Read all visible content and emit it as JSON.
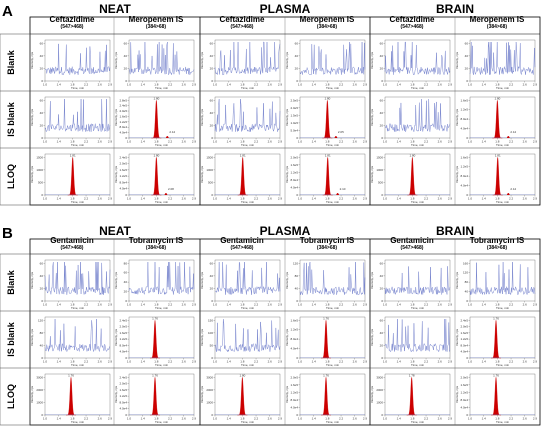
{
  "figure": {
    "panels": [
      {
        "label": "A",
        "conditions": [
          "NEAT",
          "PLASMA",
          "BRAIN"
        ],
        "analytes": [
          {
            "name": "Ceftazidime",
            "transition": "(547>468)"
          },
          {
            "name": "Meropenem IS",
            "transition": "(384>68)"
          }
        ],
        "rows": [
          "Blank",
          "IS blank",
          "LLOQ"
        ]
      },
      {
        "label": "B",
        "conditions": [
          "NEAT",
          "PLASMA",
          "BRAIN"
        ],
        "analytes": [
          {
            "name": "Gentamicin",
            "transition": "(547>468)"
          },
          {
            "name": "Tobramycin IS",
            "transition": "(384>68)"
          }
        ],
        "rows": [
          "Blank",
          "IS blank",
          "LLOQ"
        ]
      }
    ],
    "axis_label_y": "Intensity, cps",
    "axis_label_x": "Time, min",
    "colors": {
      "trace": "#6a78c8",
      "peak": "#cc0000",
      "border": "#000000"
    }
  },
  "chart_data": [
    {
      "type": "line",
      "panel": "A",
      "xlabel": "Time, min",
      "ylabel": "Intensity, cps",
      "x_ticks": [
        "1.0",
        "1.4",
        "1.8",
        "2.2",
        "2.6",
        "2.9"
      ],
      "xlim": [
        1.0,
        2.9
      ],
      "peak_retention_time": "1.80",
      "cells": [
        {
          "condition": "NEAT",
          "analyte": "Ceftazidime",
          "row": "Blank",
          "y_ticks": [
            "0",
            "20",
            "40",
            "60"
          ],
          "peak": false,
          "peak_labels": []
        },
        {
          "condition": "NEAT",
          "analyte": "Meropenem IS",
          "row": "Blank",
          "y_ticks": [
            "0",
            "20",
            "40",
            "60"
          ],
          "peak": false,
          "peak_labels": []
        },
        {
          "condition": "PLASMA",
          "analyte": "Ceftazidime",
          "row": "Blank",
          "y_ticks": [
            "0",
            "20",
            "40",
            "60"
          ],
          "peak": false,
          "peak_labels": []
        },
        {
          "condition": "PLASMA",
          "analyte": "Meropenem IS",
          "row": "Blank",
          "y_ticks": [
            "0",
            "20",
            "40",
            "60"
          ],
          "peak": false,
          "peak_labels": []
        },
        {
          "condition": "BRAIN",
          "analyte": "Ceftazidime",
          "row": "Blank",
          "y_ticks": [
            "0",
            "20",
            "40",
            "60"
          ],
          "peak": false,
          "peak_labels": []
        },
        {
          "condition": "BRAIN",
          "analyte": "Meropenem IS",
          "row": "Blank",
          "y_ticks": [
            "0",
            "20",
            "40",
            "60"
          ],
          "peak": false,
          "peak_labels": []
        },
        {
          "condition": "NEAT",
          "analyte": "Ceftazidime",
          "row": "IS blank",
          "y_ticks": [
            "0",
            "20",
            "40",
            "60"
          ],
          "peak": false,
          "peak_labels": []
        },
        {
          "condition": "NEAT",
          "analyte": "Meropenem IS",
          "row": "IS blank",
          "y_ticks": [
            "0",
            "4.0e4",
            "8.0e4",
            "1.2e5",
            "1.6e5",
            "2.0e5",
            "2.4e5",
            "2.8e5"
          ],
          "peak": true,
          "peak_labels": [
            "1.80",
            "2.12"
          ]
        },
        {
          "condition": "PLASMA",
          "analyte": "Ceftazidime",
          "row": "IS blank",
          "y_ticks": [
            "0",
            "20",
            "40",
            "60"
          ],
          "peak": false,
          "peak_labels": []
        },
        {
          "condition": "PLASMA",
          "analyte": "Meropenem IS",
          "row": "IS blank",
          "y_ticks": [
            "0",
            "5.0e4",
            "1.0e5",
            "1.5e5",
            "2.0e5",
            "2.5e5"
          ],
          "peak": true,
          "peak_labels": [
            "1.80",
            "2.05"
          ]
        },
        {
          "condition": "BRAIN",
          "analyte": "Ceftazidime",
          "row": "IS blank",
          "y_ticks": [
            "0",
            "20",
            "40",
            "60"
          ],
          "peak": false,
          "peak_labels": []
        },
        {
          "condition": "BRAIN",
          "analyte": "Meropenem IS",
          "row": "IS blank",
          "y_ticks": [
            "0",
            "4.0e4",
            "8.0e4",
            "1.2e5",
            "1.6e5"
          ],
          "peak": true,
          "peak_labels": [
            "1.80",
            "2.12"
          ]
        },
        {
          "condition": "NEAT",
          "analyte": "Ceftazidime",
          "row": "LLOQ",
          "y_ticks": [
            "0",
            "500",
            "1000",
            "1500"
          ],
          "peak": true,
          "peak_labels": [
            "1.81"
          ]
        },
        {
          "condition": "NEAT",
          "analyte": "Meropenem IS",
          "row": "LLOQ",
          "y_ticks": [
            "0",
            "4.0e4",
            "8.0e4",
            "1.2e5",
            "1.6e5",
            "2.0e5",
            "2.4e5"
          ],
          "peak": true,
          "peak_labels": [
            "1.80",
            "2.08"
          ]
        },
        {
          "condition": "PLASMA",
          "analyte": "Ceftazidime",
          "row": "LLOQ",
          "y_ticks": [
            "0",
            "500",
            "1000",
            "1500"
          ],
          "peak": true,
          "peak_labels": [
            "1.81"
          ]
        },
        {
          "condition": "PLASMA",
          "analyte": "Meropenem IS",
          "row": "LLOQ",
          "y_ticks": [
            "0",
            "4.0e4",
            "8.0e4",
            "1.2e5",
            "1.6e5",
            "2.0e5"
          ],
          "peak": true,
          "peak_labels": [
            "1.81",
            "2.10"
          ]
        },
        {
          "condition": "BRAIN",
          "analyte": "Ceftazidime",
          "row": "LLOQ",
          "y_ticks": [
            "0",
            "500",
            "1000",
            "1500"
          ],
          "peak": true,
          "peak_labels": [
            "1.80"
          ]
        },
        {
          "condition": "BRAIN",
          "analyte": "Meropenem IS",
          "row": "LLOQ",
          "y_ticks": [
            "0",
            "4.0e4",
            "8.0e4",
            "1.2e5",
            "1.6e5"
          ],
          "peak": true,
          "peak_labels": [
            "1.81",
            "2.12"
          ]
        }
      ]
    },
    {
      "type": "line",
      "panel": "B",
      "xlabel": "Time, min",
      "ylabel": "Intensity, cps",
      "x_ticks": [
        "1.0",
        "1.4",
        "1.8",
        "2.2",
        "2.6",
        "2.9"
      ],
      "xlim": [
        1.0,
        2.9
      ],
      "peak_retention_time": "1.76",
      "cells": [
        {
          "condition": "NEAT",
          "analyte": "Gentamicin",
          "row": "Blank",
          "y_ticks": [
            "0",
            "20",
            "40",
            "60"
          ],
          "peak": false,
          "peak_labels": []
        },
        {
          "condition": "NEAT",
          "analyte": "Tobramycin IS",
          "row": "Blank",
          "y_ticks": [
            "0",
            "20",
            "40",
            "60",
            "80"
          ],
          "peak": false,
          "peak_labels": []
        },
        {
          "condition": "PLASMA",
          "analyte": "Gentamicin",
          "row": "Blank",
          "y_ticks": [
            "0",
            "20",
            "40",
            "60"
          ],
          "peak": false,
          "peak_labels": []
        },
        {
          "condition": "PLASMA",
          "analyte": "Tobramycin IS",
          "row": "Blank",
          "y_ticks": [
            "0",
            "40",
            "80",
            "120"
          ],
          "peak": false,
          "peak_labels": []
        },
        {
          "condition": "BRAIN",
          "analyte": "Gentamicin",
          "row": "Blank",
          "y_ticks": [
            "0",
            "20",
            "40",
            "60"
          ],
          "peak": false,
          "peak_labels": []
        },
        {
          "condition": "BRAIN",
          "analyte": "Tobramycin IS",
          "row": "Blank",
          "y_ticks": [
            "0",
            "40",
            "80",
            "120",
            "160"
          ],
          "peak": false,
          "peak_labels": []
        },
        {
          "condition": "NEAT",
          "analyte": "Gentamicin",
          "row": "IS blank",
          "y_ticks": [
            "0",
            "40",
            "80",
            "120"
          ],
          "peak": false,
          "peak_labels": []
        },
        {
          "condition": "NEAT",
          "analyte": "Tobramycin IS",
          "row": "IS blank",
          "y_ticks": [
            "0",
            "4.0e4",
            "8.0e4",
            "1.2e5",
            "1.6e5",
            "2.0e5",
            "2.4e5"
          ],
          "peak": true,
          "peak_labels": [
            "1.76"
          ]
        },
        {
          "condition": "PLASMA",
          "analyte": "Gentamicin",
          "row": "IS blank",
          "y_ticks": [
            "0",
            "50",
            "100",
            "150"
          ],
          "peak": false,
          "peak_labels": []
        },
        {
          "condition": "PLASMA",
          "analyte": "Tobramycin IS",
          "row": "IS blank",
          "y_ticks": [
            "0",
            "4.0e4",
            "8.0e4",
            "1.2e5",
            "1.6e5"
          ],
          "peak": true,
          "peak_labels": [
            "1.76"
          ]
        },
        {
          "condition": "BRAIN",
          "analyte": "Gentamicin",
          "row": "IS blank",
          "y_ticks": [
            "0",
            "20",
            "40",
            "60"
          ],
          "peak": false,
          "peak_labels": []
        },
        {
          "condition": "BRAIN",
          "analyte": "Tobramycin IS",
          "row": "IS blank",
          "y_ticks": [
            "0",
            "4.0e4",
            "8.0e4",
            "1.2e5",
            "1.6e5",
            "2.0e5",
            "2.4e5"
          ],
          "peak": true,
          "peak_labels": [
            "1.76"
          ]
        },
        {
          "condition": "NEAT",
          "analyte": "Gentamicin",
          "row": "LLOQ",
          "y_ticks": [
            "0",
            "1000",
            "2000",
            "3000"
          ],
          "peak": true,
          "peak_labels": [
            "1.76"
          ]
        },
        {
          "condition": "NEAT",
          "analyte": "Tobramycin IS",
          "row": "LLOQ",
          "y_ticks": [
            "0",
            "4.0e4",
            "8.0e4",
            "1.2e5",
            "1.6e5",
            "2.0e5",
            "2.4e5"
          ],
          "peak": true,
          "peak_labels": [
            "1.76"
          ]
        },
        {
          "condition": "PLASMA",
          "analyte": "Gentamicin",
          "row": "LLOQ",
          "y_ticks": [
            "0",
            "1000",
            "2000",
            "3000"
          ],
          "peak": true,
          "peak_labels": [
            "1.80"
          ]
        },
        {
          "condition": "PLASMA",
          "analyte": "Tobramycin IS",
          "row": "LLOQ",
          "y_ticks": [
            "0",
            "4.0e4",
            "8.0e4",
            "1.2e5",
            "1.6e5",
            "2.0e5"
          ],
          "peak": true,
          "peak_labels": [
            "1.76"
          ]
        },
        {
          "condition": "BRAIN",
          "analyte": "Gentamicin",
          "row": "LLOQ",
          "y_ticks": [
            "0",
            "1000",
            "2000",
            "3000"
          ],
          "peak": true,
          "peak_labels": [
            "1.78"
          ]
        },
        {
          "condition": "BRAIN",
          "analyte": "Tobramycin IS",
          "row": "LLOQ",
          "y_ticks": [
            "0",
            "4.0e4",
            "8.0e4",
            "1.2e5",
            "1.6e5",
            "2.0e5"
          ],
          "peak": true,
          "peak_labels": [
            "1.76"
          ]
        }
      ]
    }
  ]
}
